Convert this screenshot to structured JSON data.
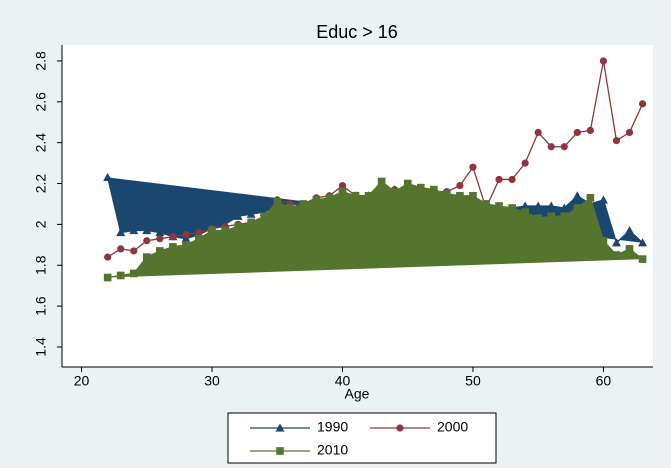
{
  "chart_data": {
    "type": "line",
    "title": "Educ > 16",
    "x_label": "Age",
    "x": [
      22,
      23,
      24,
      25,
      26,
      27,
      28,
      29,
      30,
      31,
      32,
      33,
      34,
      35,
      36,
      37,
      38,
      39,
      40,
      41,
      42,
      43,
      44,
      45,
      46,
      47,
      48,
      49,
      50,
      51,
      52,
      53,
      54,
      55,
      56,
      57,
      58,
      59,
      60,
      61,
      62,
      63
    ],
    "series": [
      {
        "name": "1990",
        "color": "#1a476f",
        "marker": "triangle",
        "fill": true,
        "values": [
          2.23,
          1.96,
          1.97,
          1.97,
          1.96,
          1.94,
          1.93,
          1.95,
          1.98,
          2.0,
          2.04,
          2.05,
          2.06,
          2.09,
          2.1,
          2.09,
          2.11,
          2.13,
          2.15,
          2.14,
          2.14,
          2.18,
          2.17,
          2.18,
          2.17,
          2.15,
          2.14,
          2.13,
          2.13,
          2.1,
          2.08,
          2.08,
          2.09,
          2.09,
          2.09,
          2.08,
          2.14,
          2.1,
          2.12,
          1.91,
          1.97,
          1.91
        ]
      },
      {
        "name": "2000",
        "color": "#90353b",
        "marker": "circle",
        "fill": false,
        "values": [
          1.84,
          1.88,
          1.87,
          1.92,
          1.93,
          1.94,
          1.95,
          1.96,
          1.98,
          1.99,
          2.0,
          2.01,
          2.03,
          2.12,
          2.1,
          2.1,
          2.13,
          2.14,
          2.19,
          2.14,
          2.14,
          2.19,
          2.17,
          2.16,
          2.16,
          2.16,
          2.16,
          2.19,
          2.28,
          2.08,
          2.22,
          2.22,
          2.3,
          2.45,
          2.38,
          2.38,
          2.45,
          2.46,
          2.8,
          2.41,
          2.45,
          2.59
        ]
      },
      {
        "name": "2010",
        "color": "#55752f",
        "marker": "square",
        "fill": true,
        "values": [
          1.74,
          1.75,
          1.76,
          1.84,
          1.87,
          1.89,
          1.9,
          1.93,
          1.97,
          1.97,
          1.99,
          2.01,
          2.04,
          2.11,
          2.08,
          2.1,
          2.12,
          2.13,
          2.16,
          2.14,
          2.14,
          2.21,
          2.16,
          2.2,
          2.18,
          2.17,
          2.15,
          2.14,
          2.14,
          2.1,
          2.09,
          2.08,
          2.06,
          2.03,
          2.04,
          2.04,
          2.08,
          2.13,
          1.92,
          1.85,
          1.88,
          1.83
        ]
      }
    ],
    "xlim": [
      18.5,
      63.8
    ],
    "xticks": [
      20,
      30,
      40,
      50,
      60
    ],
    "ylim": [
      1.302,
      2.878
    ],
    "yticks": [
      1.4,
      1.6,
      1.8,
      2,
      2.2,
      2.4,
      2.6,
      2.8
    ],
    "grid": false,
    "legend": "bottom"
  }
}
